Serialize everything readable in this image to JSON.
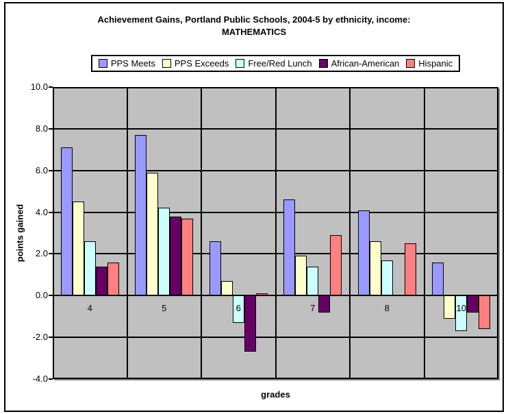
{
  "title": {
    "line1": "Achievement Gains, Portland Public Schools, 2004-5 by ethnicity, income:",
    "line2": "MATHEMATICS"
  },
  "colors": {
    "plot_background": "#C0C0C0",
    "plot_shadow": "#848484",
    "gridline": "#000000",
    "chart_border": "#000000",
    "page_background": "#FFFFFF"
  },
  "chart_data": {
    "type": "bar",
    "title": "Achievement Gains, Portland Public Schools, 2004-5 by ethnicity, income: MATHEMATICS",
    "categories": [
      "4",
      "5",
      "6",
      "7",
      "8",
      "10"
    ],
    "series": [
      {
        "name": "PPS Meets",
        "color": "#9999FF",
        "values": [
          7.1,
          7.7,
          2.6,
          4.6,
          4.1,
          1.6
        ]
      },
      {
        "name": "PPS Exceeds",
        "color": "#FFFFCC",
        "values": [
          4.5,
          5.9,
          0.7,
          1.9,
          2.6,
          -1.1
        ]
      },
      {
        "name": "Free/Red Lunch",
        "color": "#CCFFFF",
        "values": [
          2.6,
          4.2,
          -1.3,
          1.4,
          1.7,
          -1.7
        ]
      },
      {
        "name": "African-American",
        "color": "#660066",
        "values": [
          1.4,
          3.8,
          -2.7,
          -0.8,
          0,
          -0.8
        ]
      },
      {
        "name": "Hispanic",
        "color": "#FF8080",
        "values": [
          1.6,
          3.7,
          0.1,
          2.9,
          2.5,
          -1.6
        ]
      }
    ],
    "xlabel": "grades",
    "ylabel": "points gained",
    "ylim": [
      -4,
      10
    ],
    "ytick_step": 2,
    "y_tick_values": [
      10,
      8,
      6,
      4,
      2,
      0,
      -2,
      -4
    ],
    "y_tick_labels": [
      "10.0",
      "8.0",
      "6.0",
      "4.0",
      "2.0",
      "0.0",
      "-2.0",
      "-4.0"
    ],
    "grid": true,
    "legend_position": "top"
  }
}
